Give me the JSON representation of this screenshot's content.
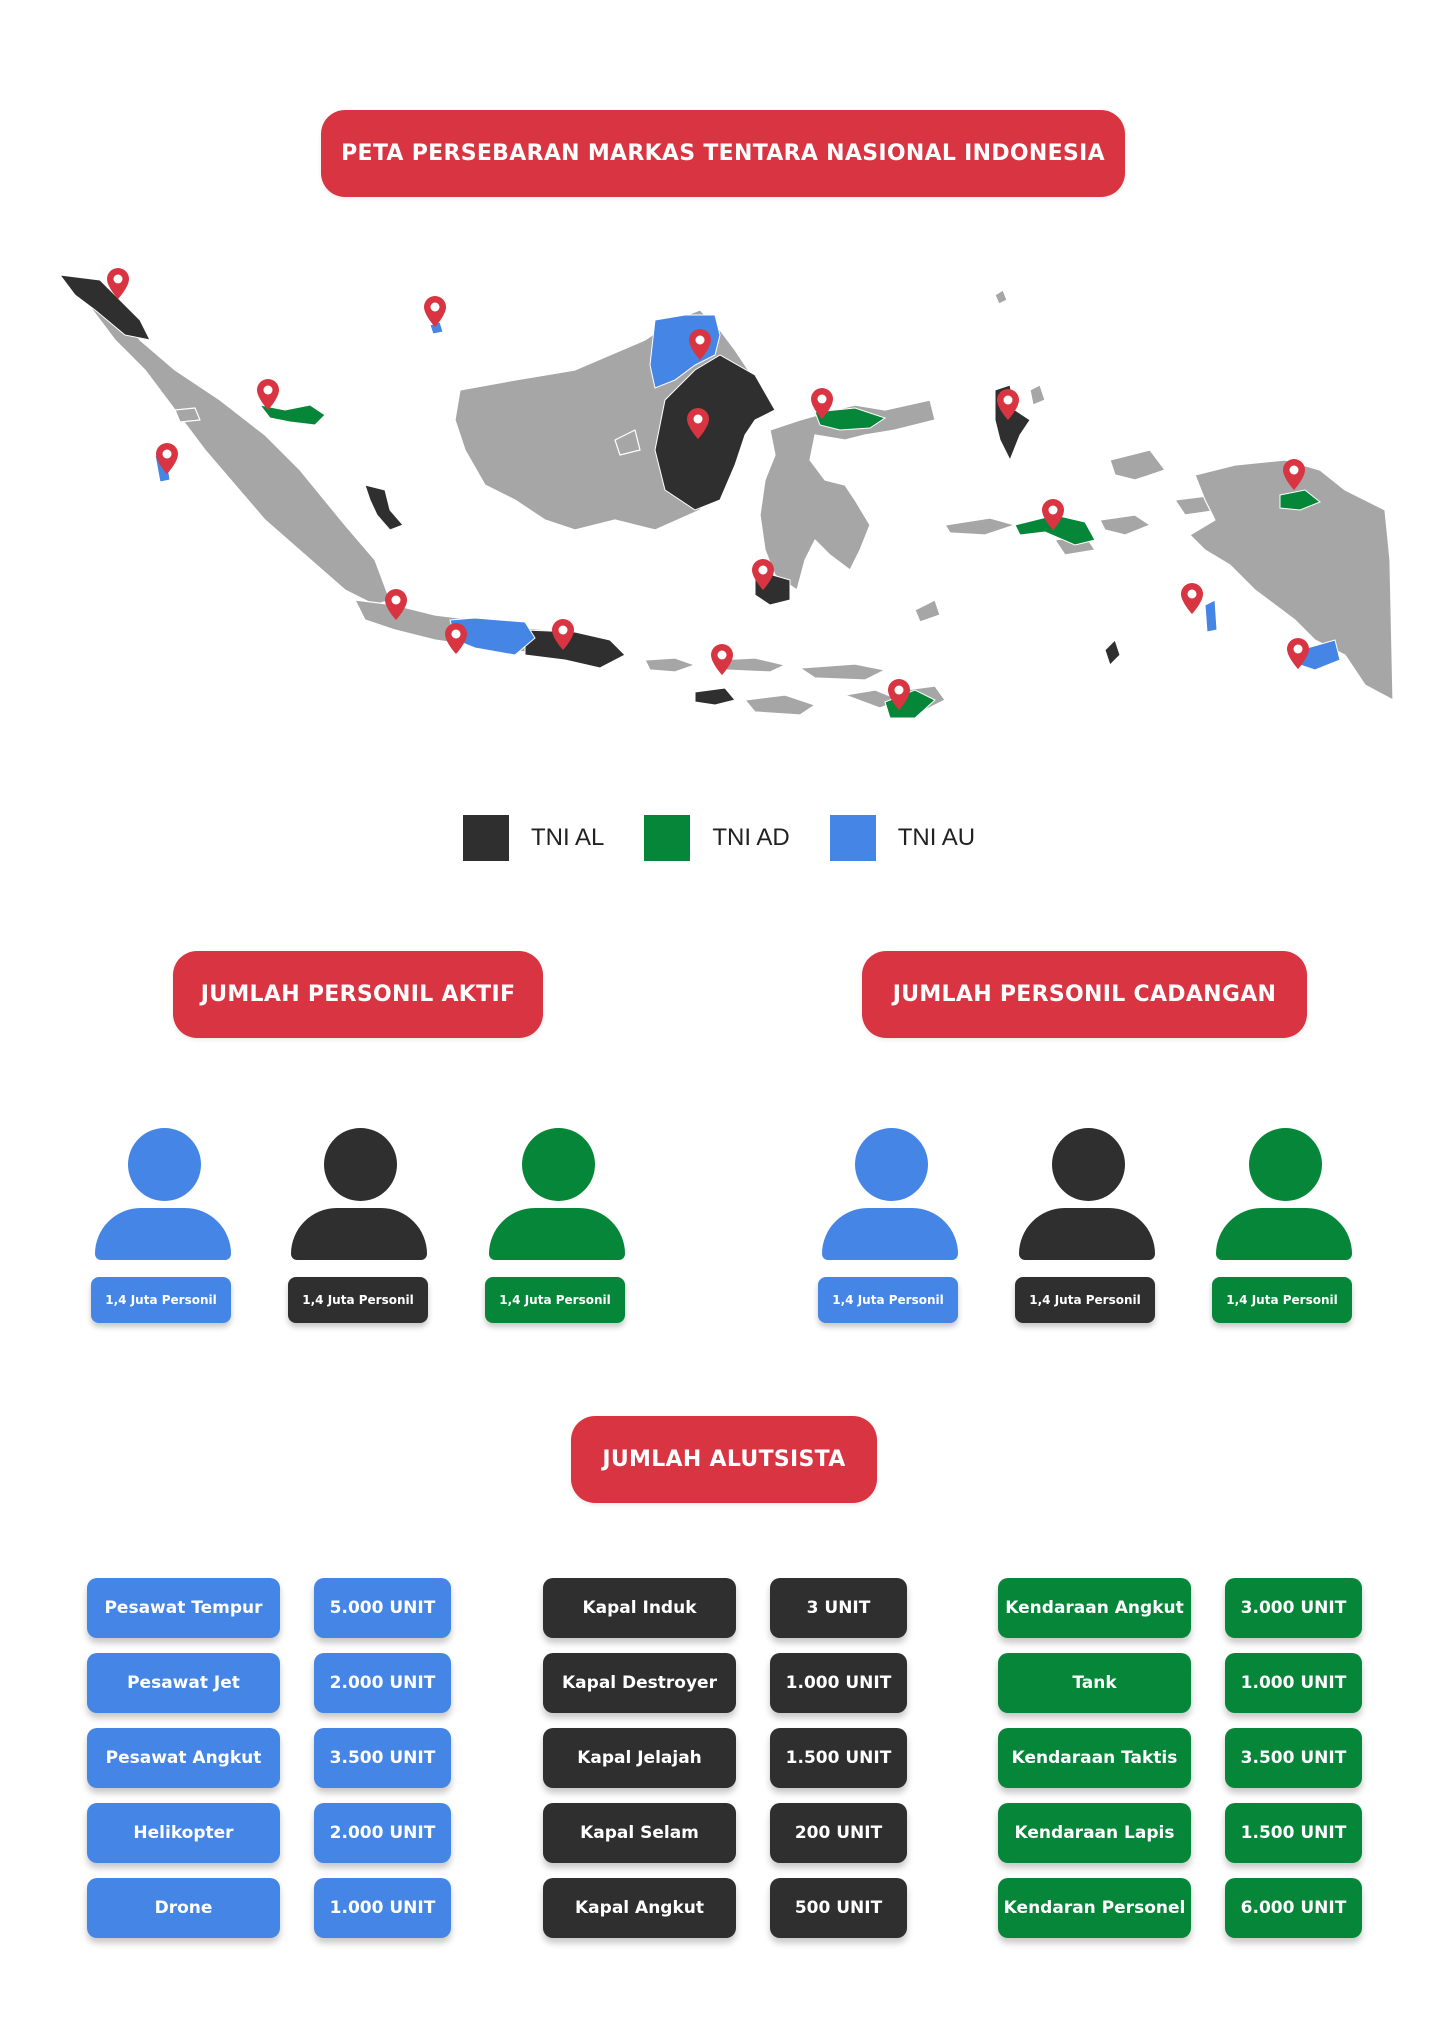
{
  "colors": {
    "accent_red": "#d93441",
    "tni_al": "#2f2f2f",
    "tni_ad": "#068638",
    "tni_au": "#4585e6",
    "land_gray": "#a6a6a6"
  },
  "map": {
    "title": "PETA PERSEBARAN MARKAS TENTARA NASIONAL INDONESIA",
    "marker_icon": "map-pin-icon"
  },
  "legend": [
    {
      "label": "TNI AL",
      "color": "#2f2f2f"
    },
    {
      "label": "TNI AD",
      "color": "#068638"
    },
    {
      "label": "TNI AU",
      "color": "#4585e6"
    }
  ],
  "personnel": {
    "active": {
      "title": "JUMLAH PERSONIL AKTIF",
      "items": [
        {
          "label": "1,4 Juta Personil",
          "icon": "person-icon"
        },
        {
          "label": "1,4 Juta Personil",
          "icon": "person-icon"
        },
        {
          "label": "1,4 Juta Personil",
          "icon": "person-icon"
        }
      ]
    },
    "reserve": {
      "title": "JUMLAH PERSONIL CADANGAN",
      "items": [
        {
          "label": "1,4 Juta Personil",
          "icon": "person-icon"
        },
        {
          "label": "1,4 Juta Personil",
          "icon": "person-icon"
        },
        {
          "label": "1,4 Juta Personil",
          "icon": "person-icon"
        }
      ]
    }
  },
  "alutsista": {
    "title": "JUMLAH ALUTSISTA",
    "au": [
      {
        "name": "Pesawat Tempur",
        "value": "5.000 UNIT"
      },
      {
        "name": "Pesawat Jet",
        "value": "2.000 UNIT"
      },
      {
        "name": "Pesawat Angkut",
        "value": "3.500 UNIT"
      },
      {
        "name": "Helikopter",
        "value": "2.000 UNIT"
      },
      {
        "name": "Drone",
        "value": "1.000 UNIT"
      }
    ],
    "al": [
      {
        "name": "Kapal Induk",
        "value": "3 UNIT"
      },
      {
        "name": "Kapal Destroyer",
        "value": "1.000 UNIT"
      },
      {
        "name": "Kapal Jelajah",
        "value": "1.500 UNIT"
      },
      {
        "name": "Kapal Selam",
        "value": "200 UNIT"
      },
      {
        "name": "Kapal Angkut",
        "value": "500 UNIT"
      }
    ],
    "ad": [
      {
        "name": "Kendaraan Angkut",
        "value": "3.000 UNIT"
      },
      {
        "name": "Tank",
        "value": "1.000 UNIT"
      },
      {
        "name": "Kendaraan Taktis",
        "value": "3.500 UNIT"
      },
      {
        "name": "Kendaraan Lapis",
        "value": "1.500 UNIT"
      },
      {
        "name": "Kendaran Personel",
        "value": "6.000 UNIT"
      }
    ]
  }
}
